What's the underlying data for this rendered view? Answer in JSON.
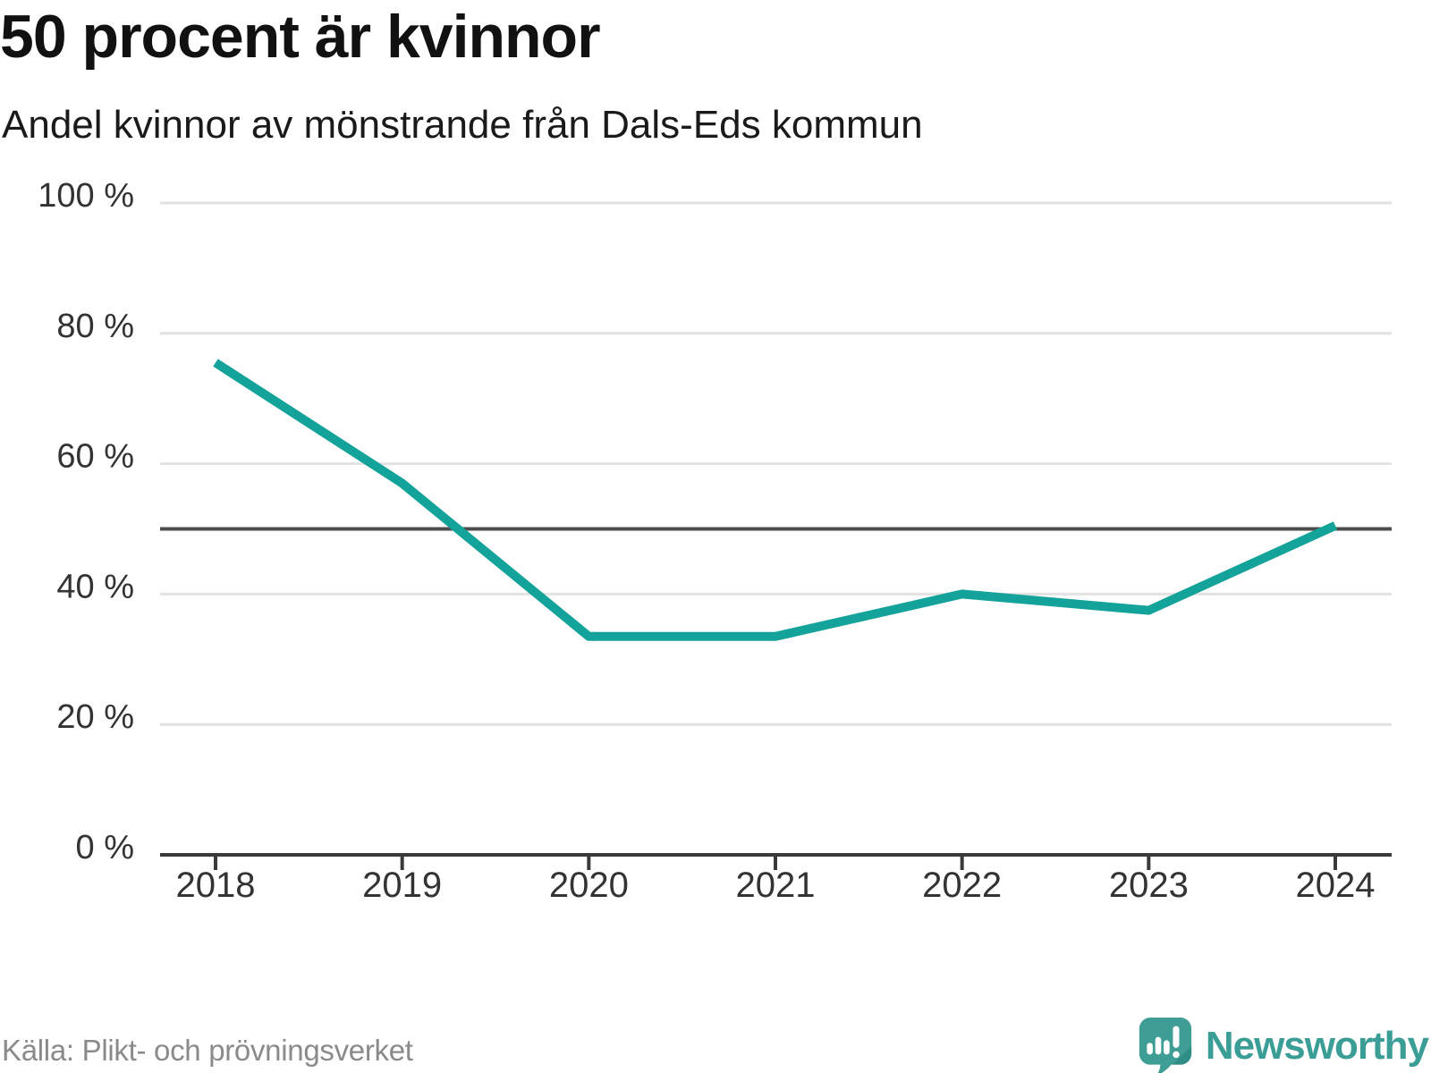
{
  "chart_data": {
    "type": "line",
    "title": "50 procent är kvinnor",
    "subtitle": "Andel kvinnor av mönstrande från Dals-Eds kommun",
    "x": [
      "2018",
      "2019",
      "2020",
      "2021",
      "2022",
      "2023",
      "2024"
    ],
    "series": [
      {
        "name": "Andel kvinnor av mönstrande",
        "values": [
          75.5,
          57,
          33.5,
          33.5,
          40,
          37.5,
          50.5
        ]
      }
    ],
    "xlabel": "",
    "ylabel": "",
    "ylim": [
      0,
      100
    ],
    "yticks": [
      0,
      20,
      40,
      60,
      80,
      100
    ],
    "ytick_suffix": " %",
    "reference_line": 50,
    "grid": "horizontal",
    "legend": "none",
    "colors": {
      "line": "#14A39A",
      "reference": "#4D4D4D",
      "grid": "#E2E2E2",
      "axis": "#3A3A3A",
      "tick_text": "#333333"
    }
  },
  "footer": {
    "source": "Källa: Plikt- och prövningsverket",
    "brand": "Newsworthy",
    "brand_color": "#3A9E97",
    "logo_color": "#3E9D95",
    "logo_fold_color": "#2F8C85",
    "logo_icon": "newsworthy-speech-bubble-bar-chart"
  }
}
